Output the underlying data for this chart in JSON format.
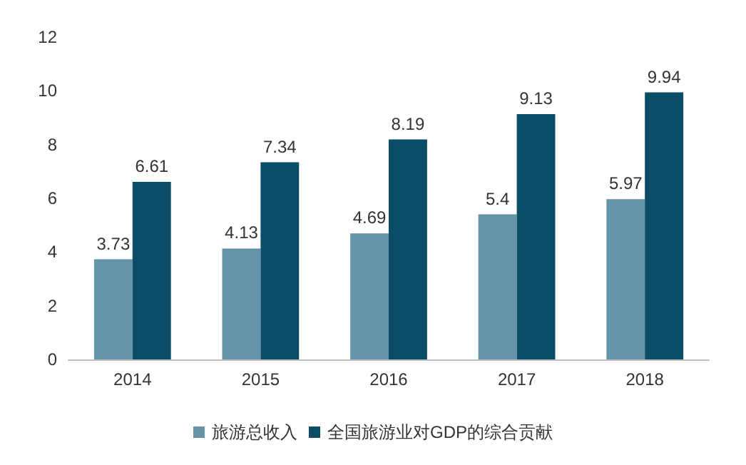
{
  "chart_data": {
    "type": "bar",
    "categories": [
      "2014",
      "2015",
      "2016",
      "2017",
      "2018"
    ],
    "series": [
      {
        "name": "旅游总收入",
        "color": "#6594a8",
        "values": [
          3.73,
          4.13,
          4.69,
          5.4,
          5.97
        ]
      },
      {
        "name": "全国旅游业对GDP的综合贡献",
        "color": "#0b4c66",
        "values": [
          6.61,
          7.34,
          8.19,
          9.13,
          9.94
        ]
      }
    ],
    "ylim": [
      0,
      12
    ],
    "yticks": [
      0,
      2,
      4,
      6,
      8,
      10,
      12
    ],
    "grid": false,
    "legend": "bottom",
    "data_labels": true
  }
}
